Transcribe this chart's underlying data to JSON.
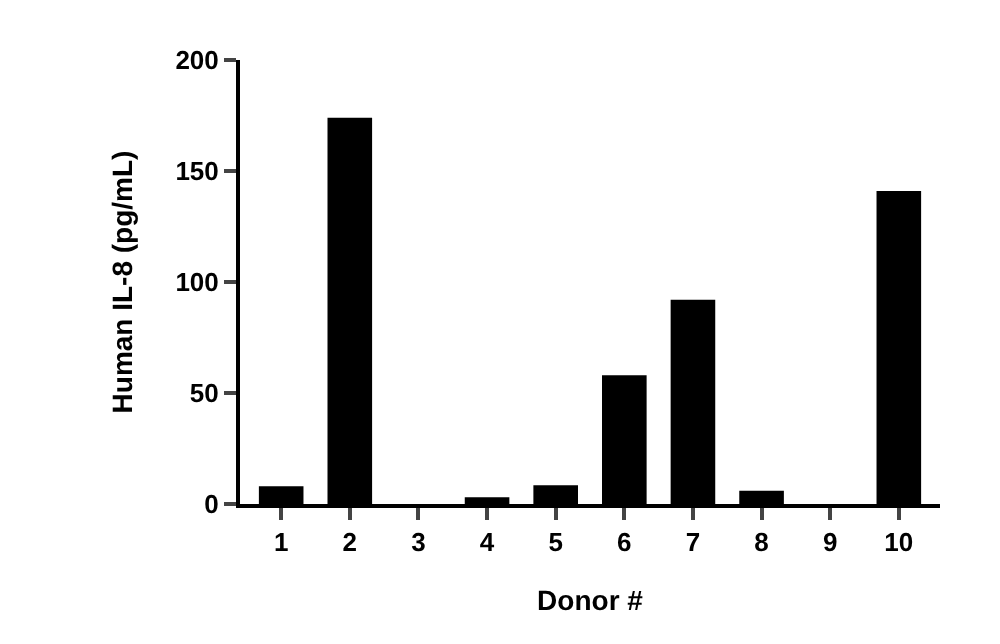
{
  "chart_data": {
    "type": "bar",
    "xlabel": "Donor #",
    "ylabel": "Human IL-8 (pg/mL)",
    "categories": [
      "1",
      "2",
      "3",
      "4",
      "5",
      "6",
      "7",
      "8",
      "9",
      "10"
    ],
    "values": [
      8,
      174,
      0,
      3,
      8.5,
      58,
      92,
      6,
      0,
      141
    ],
    "color": "#000000",
    "ylim": [
      0,
      200
    ],
    "yticks": [
      0,
      50,
      100,
      150,
      200
    ],
    "grid": false,
    "legend": false
  }
}
